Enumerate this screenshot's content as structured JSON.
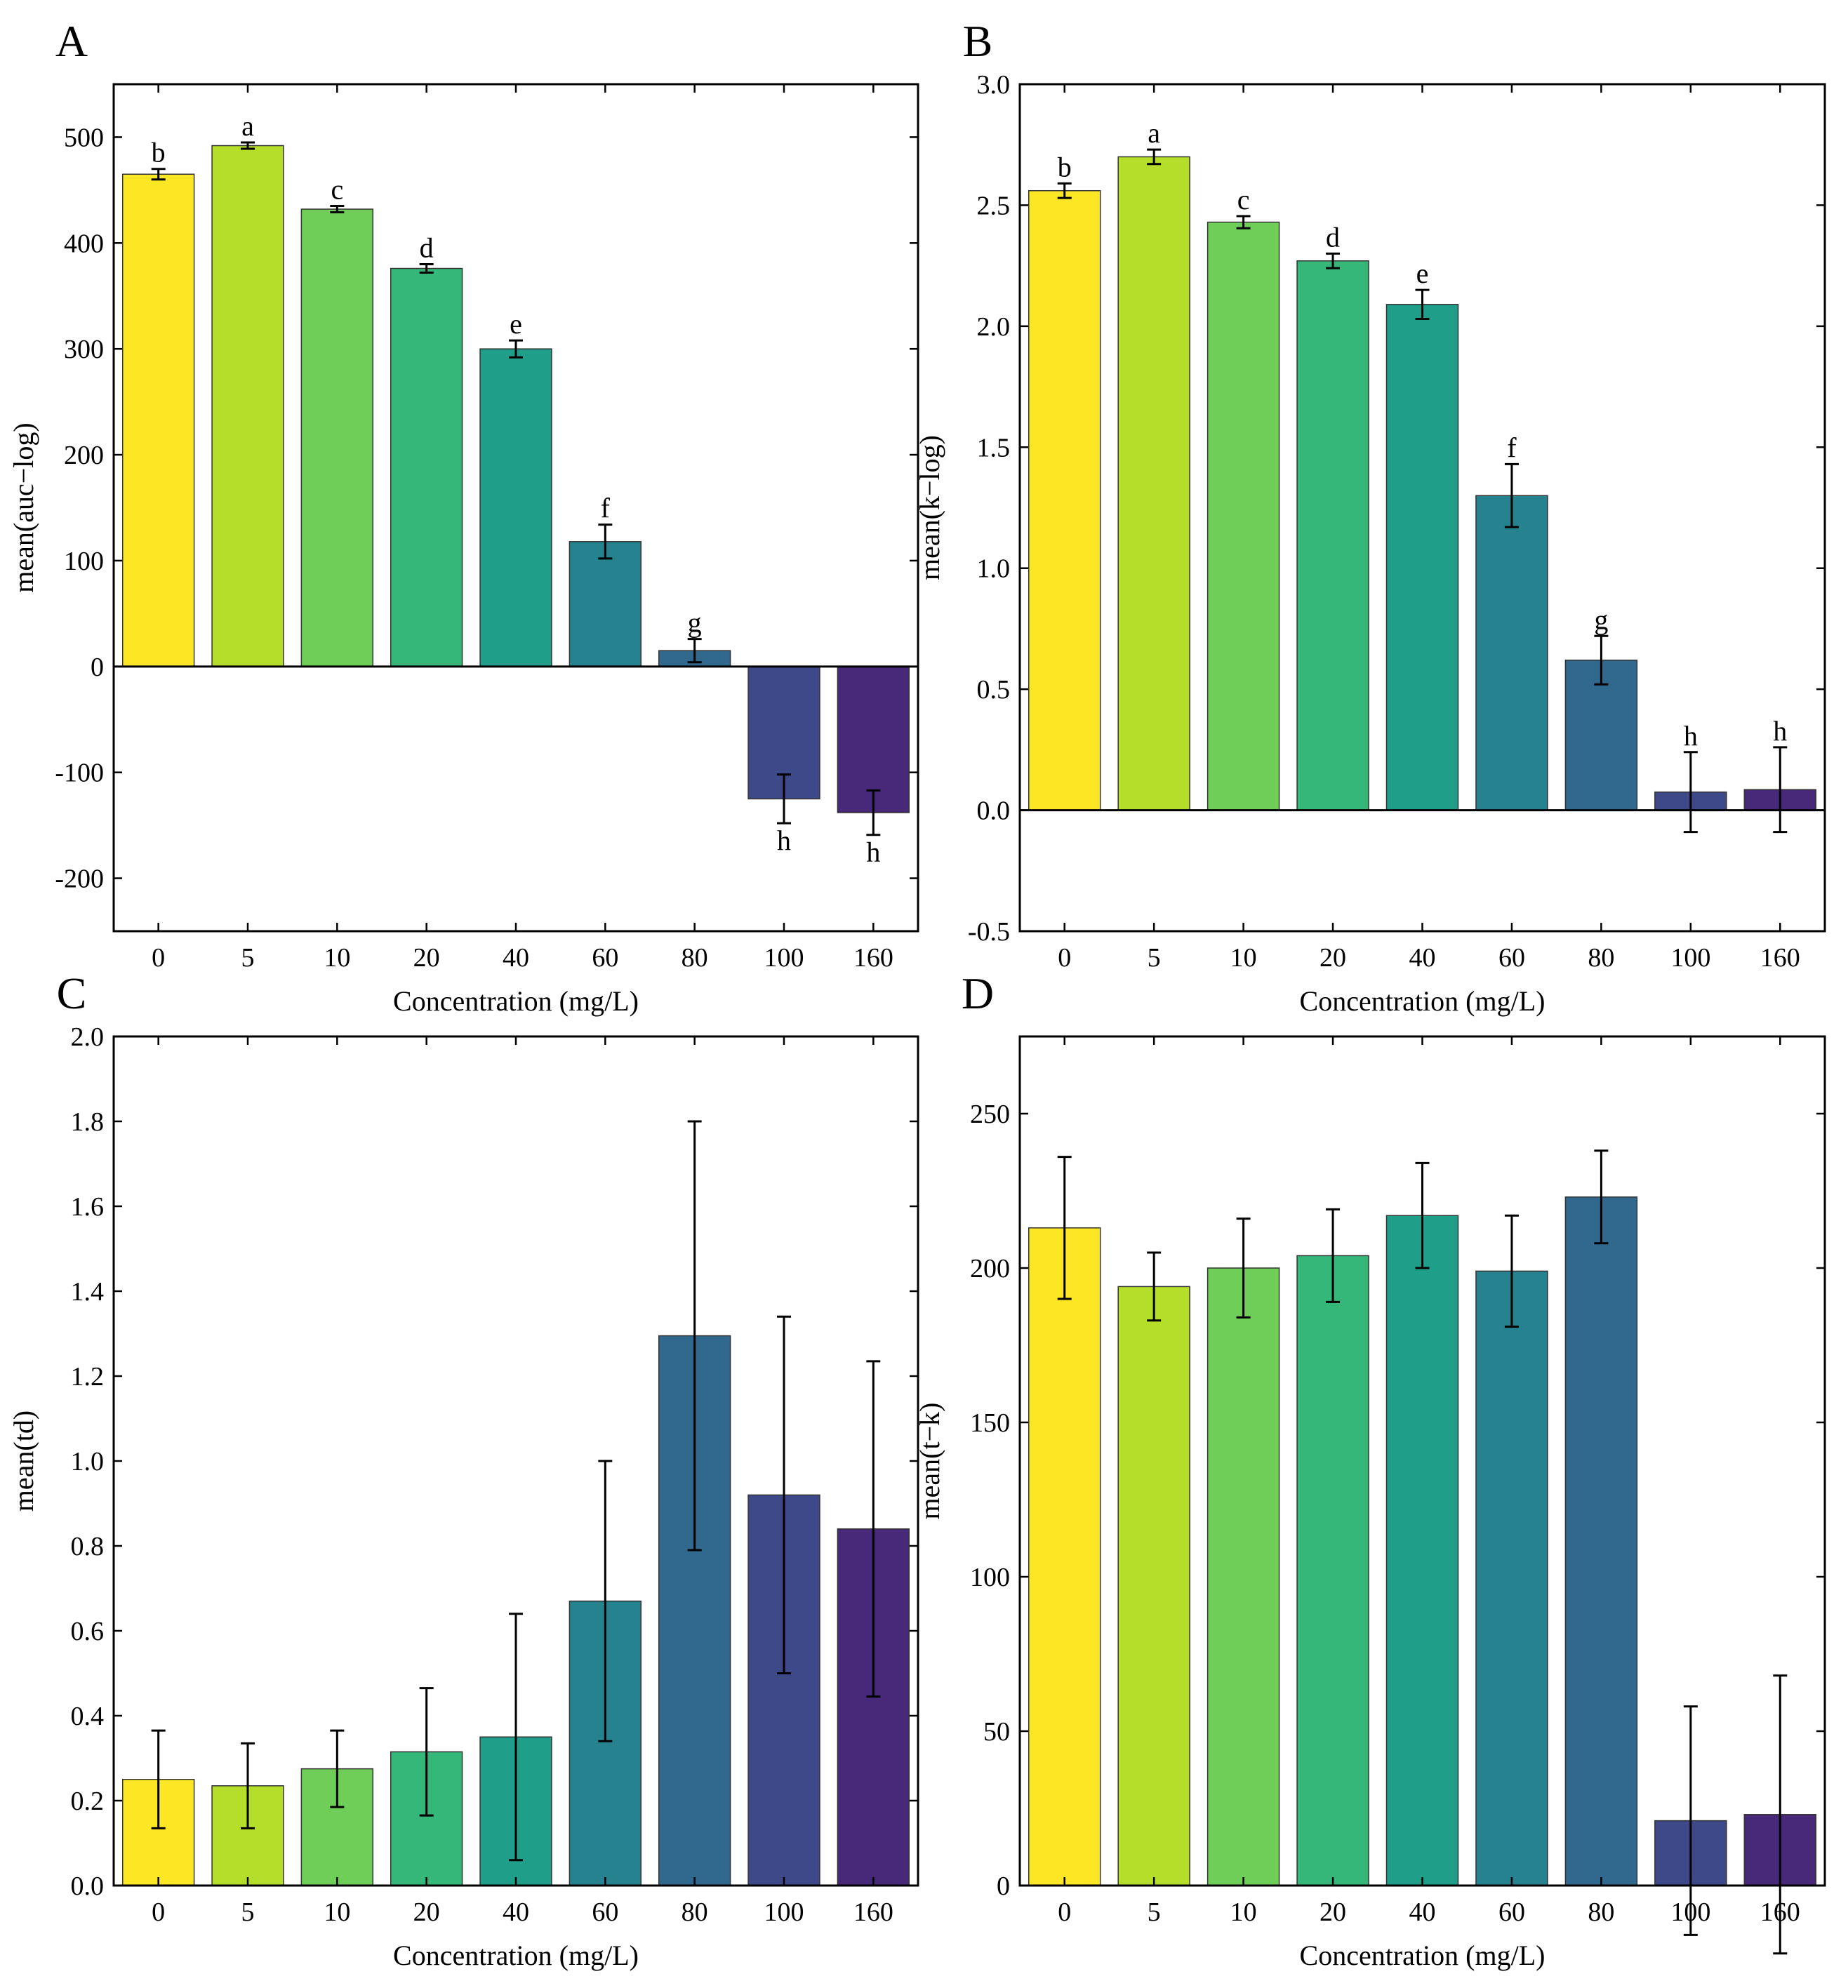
{
  "chart_data": [
    {
      "panel_label": "A",
      "type": "bar",
      "categories": [
        "0",
        "5",
        "10",
        "20",
        "40",
        "60",
        "80",
        "100",
        "160"
      ],
      "values": [
        465,
        492,
        432,
        376,
        300,
        118,
        15,
        -125,
        -138
      ],
      "errors": [
        5,
        3,
        3,
        4,
        8,
        16,
        11,
        23,
        21
      ],
      "significance_letters": [
        "b",
        "a",
        "c",
        "d",
        "e",
        "f",
        "g",
        "h",
        "h"
      ],
      "xlabel": "Concentration (mg/L)",
      "ylabel": "mean(auc−log)",
      "ylim": [
        -250,
        550
      ],
      "yticks": [
        -200,
        -100,
        0,
        100,
        200,
        300,
        400,
        500
      ],
      "ytick_labels": [
        "-200",
        "-100",
        "0",
        "100",
        "200",
        "300",
        "400",
        "500"
      ],
      "zero_line": true
    },
    {
      "panel_label": "B",
      "type": "bar",
      "categories": [
        "0",
        "5",
        "10",
        "20",
        "40",
        "60",
        "80",
        "100",
        "160"
      ],
      "values": [
        2.56,
        2.7,
        2.43,
        2.27,
        2.09,
        1.3,
        0.62,
        0.075,
        0.085
      ],
      "errors": [
        0.03,
        0.03,
        0.025,
        0.03,
        0.06,
        0.13,
        0.1,
        0.165,
        0.175
      ],
      "significance_letters": [
        "b",
        "a",
        "c",
        "d",
        "e",
        "f",
        "g",
        "h",
        "h"
      ],
      "xlabel": "Concentration (mg/L)",
      "ylabel": "mean(k−log)",
      "ylim": [
        -0.5,
        3.0
      ],
      "yticks": [
        -0.5,
        0.0,
        0.5,
        1.0,
        1.5,
        2.0,
        2.5,
        3.0
      ],
      "ytick_labels": [
        "-0.5",
        "0.0",
        "0.5",
        "1.0",
        "1.5",
        "2.0",
        "2.5",
        "3.0"
      ],
      "zero_line": true
    },
    {
      "panel_label": "C",
      "type": "bar",
      "categories": [
        "0",
        "5",
        "10",
        "20",
        "40",
        "60",
        "80",
        "100",
        "160"
      ],
      "values": [
        0.25,
        0.235,
        0.275,
        0.315,
        0.35,
        0.67,
        1.295,
        0.92,
        0.84
      ],
      "errors": [
        0.115,
        0.1,
        0.09,
        0.15,
        0.29,
        0.33,
        0.505,
        0.42,
        0.395
      ],
      "significance_letters": [],
      "xlabel": "Concentration (mg/L)",
      "ylabel": "mean(td)",
      "ylim": [
        0.0,
        2.0
      ],
      "yticks": [
        0.0,
        0.2,
        0.4,
        0.6,
        0.8,
        1.0,
        1.2,
        1.4,
        1.6,
        1.8,
        2.0
      ],
      "ytick_labels": [
        "0.0",
        "0.2",
        "0.4",
        "0.6",
        "0.8",
        "1.0",
        "1.2",
        "1.4",
        "1.6",
        "1.8",
        "2.0"
      ],
      "zero_line": false
    },
    {
      "panel_label": "D",
      "type": "bar",
      "categories": [
        "0",
        "5",
        "10",
        "20",
        "40",
        "60",
        "80",
        "100",
        "160"
      ],
      "values": [
        213,
        194,
        200,
        204,
        217,
        199,
        223,
        21,
        23
      ],
      "errors": [
        23,
        11,
        16,
        15,
        17,
        18,
        15,
        37,
        45
      ],
      "significance_letters": [],
      "xlabel": "Concentration (mg/L)",
      "ylabel": "mean(t−k)",
      "ylim": [
        0,
        275
      ],
      "yticks": [
        0,
        50,
        100,
        150,
        200,
        250
      ],
      "ytick_labels": [
        "0",
        "50",
        "100",
        "150",
        "200",
        "250"
      ],
      "zero_line": false
    }
  ],
  "bar_colors": [
    "#fde725",
    "#b5de2b",
    "#6ece58",
    "#35b779",
    "#1f9e89",
    "#26828e",
    "#31688e",
    "#3e4989",
    "#482878"
  ]
}
